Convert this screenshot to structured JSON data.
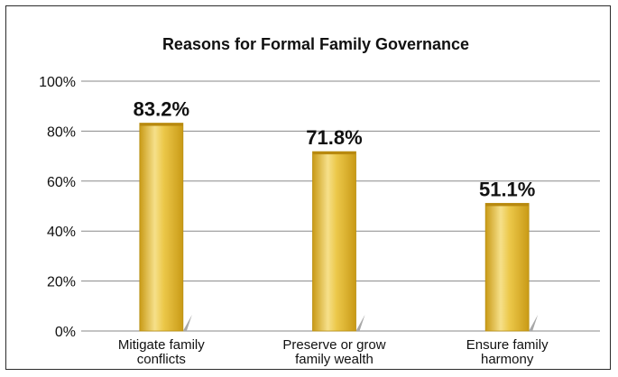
{
  "chart_data": {
    "type": "bar",
    "title": "Reasons for Formal Family Governance",
    "categories": [
      [
        "Mitigate family",
        "conflicts"
      ],
      [
        "Preserve or grow",
        "family wealth"
      ],
      [
        "Ensure family",
        "harmony"
      ]
    ],
    "values": [
      83.2,
      71.8,
      51.1
    ],
    "value_labels": [
      "83.2%",
      "71.8%",
      "51.1%"
    ],
    "ylim": [
      0,
      100
    ],
    "yticks": [
      0,
      20,
      40,
      60,
      80,
      100
    ],
    "ytick_labels": [
      "0%",
      "20%",
      "40%",
      "60%",
      "80%",
      "100%"
    ],
    "grid": true,
    "bar_color": "#e0b52a",
    "bar_highlight": "#f6e08a",
    "bar_shadow": "#a8a8a8",
    "grid_color": "#8a8a8a"
  }
}
